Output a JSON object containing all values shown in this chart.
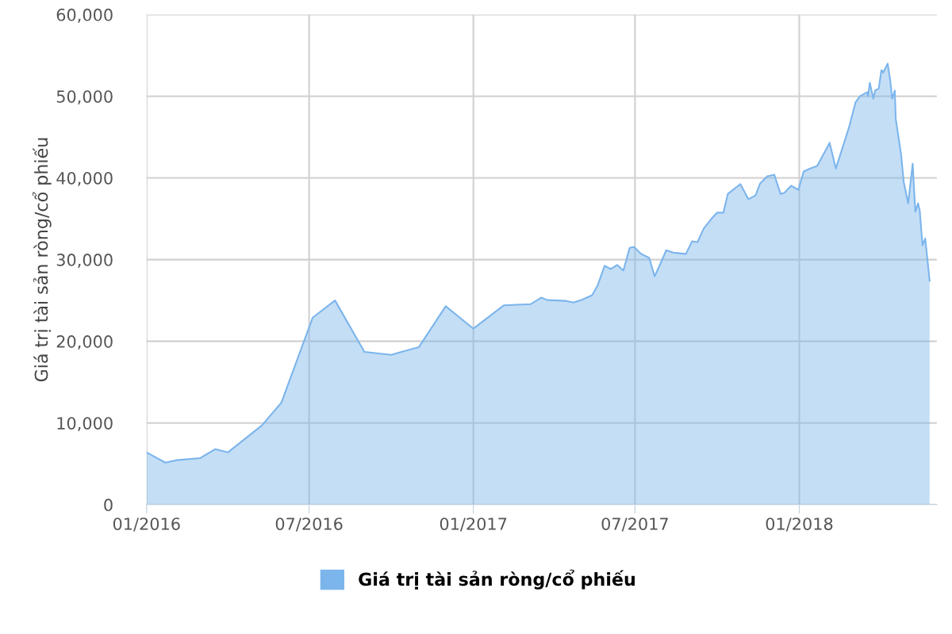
{
  "chart_data": {
    "type": "area",
    "ylabel": "Giá trị tài sản ròng/cổ phiếu",
    "x": [
      "2016-01-01",
      "2016-01-22",
      "2016-02-04",
      "2016-03-01",
      "2016-03-18",
      "2016-04-01",
      "2016-05-09",
      "2016-05-31",
      "2016-07-05",
      "2016-07-30",
      "2016-09-01",
      "2016-10-01",
      "2016-11-01",
      "2016-12-01",
      "2017-01-01",
      "2017-02-04",
      "2017-03-06",
      "2017-03-18",
      "2017-03-25",
      "2017-04-15",
      "2017-04-23",
      "2017-05-02",
      "2017-05-06",
      "2017-05-14",
      "2017-05-20",
      "2017-05-28",
      "2017-06-04",
      "2017-06-11",
      "2017-06-18",
      "2017-06-25",
      "2017-06-30",
      "2017-07-08",
      "2017-07-17",
      "2017-07-23",
      "2017-07-29",
      "2017-08-05",
      "2017-08-13",
      "2017-08-27",
      "2017-09-03",
      "2017-09-09",
      "2017-09-16",
      "2017-09-25",
      "2017-10-01",
      "2017-10-08",
      "2017-10-13",
      "2017-10-27",
      "2017-11-05",
      "2017-11-13",
      "2017-11-18",
      "2017-11-26",
      "2017-12-04",
      "2017-12-11",
      "2017-12-15",
      "2017-12-23",
      "2017-12-31",
      "2018-01-06",
      "2018-01-13",
      "2018-01-21",
      "2018-02-04",
      "2018-02-11",
      "2018-02-26",
      "2018-03-05",
      "2018-03-10",
      "2018-03-18",
      "2018-03-19",
      "2018-03-21",
      "2018-03-25",
      "2018-03-27",
      "2018-03-31",
      "2018-04-03",
      "2018-04-05",
      "2018-04-10",
      "2018-04-13",
      "2018-04-15",
      "2018-04-18",
      "2018-04-19",
      "2018-04-25",
      "2018-04-28",
      "2018-05-03",
      "2018-05-08",
      "2018-05-11",
      "2018-05-14",
      "2018-05-16",
      "2018-05-19",
      "2018-05-22",
      "2018-05-24",
      "2018-05-27"
    ],
    "series": [
      {
        "name": "Giá trị tài sản ròng/cổ phiếu",
        "color": "#7cb5ec",
        "values": [
          6400,
          5150,
          5450,
          5700,
          6800,
          6400,
          9700,
          12500,
          22900,
          25000,
          18700,
          18350,
          19300,
          24300,
          21550,
          24400,
          24550,
          25350,
          25050,
          24950,
          24750,
          25050,
          25250,
          25650,
          26800,
          29250,
          28850,
          29350,
          28650,
          31450,
          31550,
          30700,
          30200,
          27950,
          29400,
          31150,
          30850,
          30700,
          32250,
          32150,
          33800,
          35050,
          35750,
          35750,
          38050,
          39250,
          37400,
          37850,
          39300,
          40200,
          40400,
          38050,
          38150,
          39050,
          38550,
          40800,
          41150,
          41450,
          44300,
          41150,
          46300,
          49250,
          50000,
          50500,
          50000,
          51650,
          49700,
          50700,
          50950,
          53200,
          52900,
          54000,
          51850,
          49700,
          50700,
          47300,
          42900,
          39500,
          36900,
          41750,
          35850,
          36900,
          35950,
          31750,
          32600,
          30600,
          27400
        ]
      }
    ],
    "xlim": [
      "2016-01-01",
      "2018-06-04"
    ],
    "xticks": [
      {
        "value": "2016-01-01",
        "label": "01/2016"
      },
      {
        "value": "2016-07-01",
        "label": "07/2016"
      },
      {
        "value": "2017-01-01",
        "label": "01/2017"
      },
      {
        "value": "2017-07-01",
        "label": "07/2017"
      },
      {
        "value": "2018-01-01",
        "label": "01/2018"
      }
    ],
    "ylim": [
      0,
      60000
    ],
    "yticks": [
      0,
      {
        "value": 10000,
        "label": "10,000"
      },
      {
        "value": 20000,
        "label": "20,000"
      },
      {
        "value": 30000,
        "label": "30,000"
      },
      {
        "value": 40000,
        "label": "40,000"
      },
      {
        "value": 50000,
        "label": "50,000"
      },
      {
        "value": 60000,
        "label": "60,000"
      }
    ],
    "grid": true,
    "legend": "bottom"
  }
}
